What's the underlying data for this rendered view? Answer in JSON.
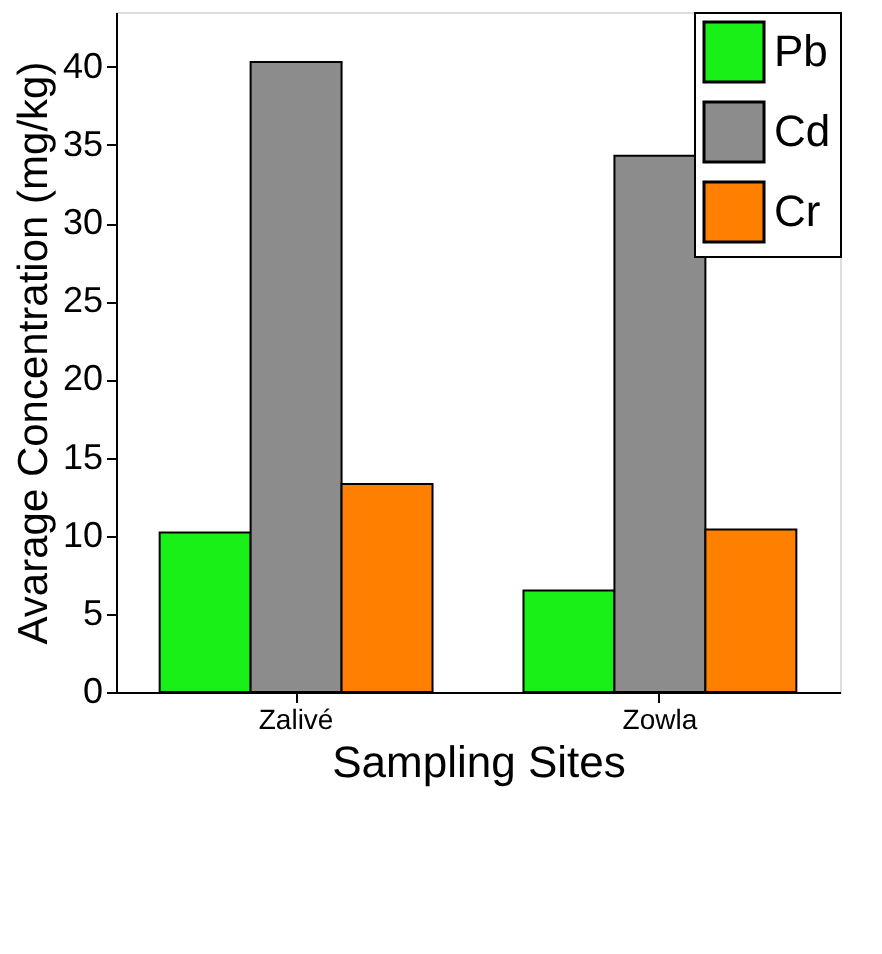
{
  "chart_data": {
    "type": "bar",
    "xlabel": "Sampling Sites",
    "ylabel": "Avarage Concentration (mg/kg)",
    "categories": [
      "Zalivé",
      "Zowla"
    ],
    "series": [
      {
        "name": "Pb",
        "color": "#18f018",
        "values": [
          10.2,
          6.5
        ]
      },
      {
        "name": "Cd",
        "color": "#8c8c8c",
        "values": [
          40.3,
          34.3
        ]
      },
      {
        "name": "Cr",
        "color": "#ff8000",
        "values": [
          13.3,
          10.4
        ]
      }
    ],
    "ylim": [
      0,
      43.5
    ],
    "yticks": [
      0,
      5,
      10,
      15,
      20,
      25,
      30,
      35,
      40
    ],
    "grid": false,
    "legend": "top right"
  }
}
